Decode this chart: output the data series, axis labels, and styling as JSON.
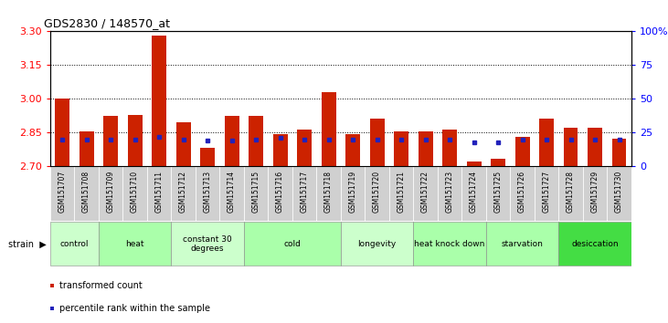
{
  "title": "GDS2830 / 148570_at",
  "samples": [
    "GSM151707",
    "GSM151708",
    "GSM151709",
    "GSM151710",
    "GSM151711",
    "GSM151712",
    "GSM151713",
    "GSM151714",
    "GSM151715",
    "GSM151716",
    "GSM151717",
    "GSM151718",
    "GSM151719",
    "GSM151720",
    "GSM151721",
    "GSM151722",
    "GSM151723",
    "GSM151724",
    "GSM151725",
    "GSM151726",
    "GSM151727",
    "GSM151728",
    "GSM151729",
    "GSM151730"
  ],
  "red_values": [
    3.0,
    2.856,
    2.922,
    2.928,
    3.278,
    2.895,
    2.783,
    2.922,
    2.922,
    2.842,
    2.862,
    3.03,
    2.842,
    2.912,
    2.856,
    2.856,
    2.862,
    2.722,
    2.732,
    2.832,
    2.912,
    2.872,
    2.872,
    2.822
  ],
  "blue_percentiles": [
    20,
    20,
    20,
    20,
    22,
    20,
    19,
    19,
    20,
    21,
    20,
    20,
    20,
    20,
    20,
    20,
    20,
    18,
    18,
    20,
    20,
    20,
    20,
    20
  ],
  "ymin": 2.7,
  "ymax": 3.3,
  "yticks_left": [
    2.7,
    2.85,
    3.0,
    3.15,
    3.3
  ],
  "yticks_right": [
    0,
    25,
    50,
    75,
    100
  ],
  "bar_color": "#cc2200",
  "blue_color": "#2222bb",
  "grid_lines": [
    2.85,
    3.0,
    3.15
  ],
  "group_boundaries": [
    {
      "start": 0,
      "end": 2,
      "label": "control",
      "color": "#ccffcc"
    },
    {
      "start": 2,
      "end": 5,
      "label": "heat",
      "color": "#aaffaa"
    },
    {
      "start": 5,
      "end": 8,
      "label": "constant 30\ndegrees",
      "color": "#ccffcc"
    },
    {
      "start": 8,
      "end": 12,
      "label": "cold",
      "color": "#aaffaa"
    },
    {
      "start": 12,
      "end": 15,
      "label": "longevity",
      "color": "#ccffcc"
    },
    {
      "start": 15,
      "end": 18,
      "label": "heat knock down",
      "color": "#aaffaa"
    },
    {
      "start": 18,
      "end": 21,
      "label": "starvation",
      "color": "#aaffaa"
    },
    {
      "start": 21,
      "end": 24,
      "label": "desiccation",
      "color": "#44dd44"
    }
  ],
  "xtick_bg": "#c8c8c8",
  "group_strip_bg": "#555555",
  "legend_items": [
    {
      "color": "#cc2200",
      "label": "transformed count"
    },
    {
      "color": "#2222bb",
      "label": "percentile rank within the sample"
    }
  ]
}
